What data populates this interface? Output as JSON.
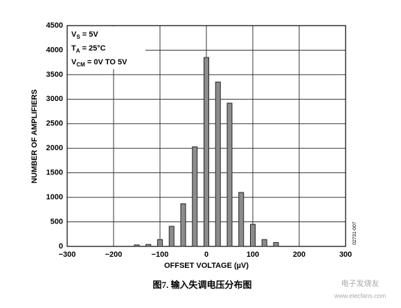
{
  "chart_data": {
    "type": "bar",
    "x": [
      -150,
      -125,
      -100,
      -75,
      -50,
      -25,
      0,
      25,
      50,
      75,
      100,
      125,
      150
    ],
    "values": [
      30,
      40,
      140,
      410,
      870,
      2030,
      3850,
      3350,
      2920,
      1100,
      450,
      140,
      80
    ],
    "color": "#8c8c8c",
    "xlim": [
      -300,
      300
    ],
    "xticks": [
      {
        "value": -300,
        "label": "−300"
      },
      {
        "value": -200,
        "label": "−200"
      },
      {
        "value": -100,
        "label": "−100"
      },
      0,
      100,
      200,
      300
    ],
    "ylim": [
      0,
      4500
    ],
    "yticks": [
      0,
      500,
      1000,
      1500,
      2000,
      2500,
      3000,
      3500,
      4000,
      4500
    ],
    "grid": true,
    "xlabel": "OFFSET VOLTAGE (µV)",
    "ylabel": "NUMBER OF AMPLIFIERS",
    "annotations": [
      {
        "text": "V",
        "sub": "S",
        "rest": " = 5V"
      },
      {
        "text": "T",
        "sub": "A",
        "rest": " = 25°C"
      },
      {
        "text": "V",
        "sub": "CM",
        "rest": " = 0V TO 5V"
      }
    ],
    "figure_id": "02731-007",
    "caption": "图7. 输入失调电压分布图",
    "watermark": [
      "电子发烧友",
      "www.elecfans.com"
    ]
  }
}
